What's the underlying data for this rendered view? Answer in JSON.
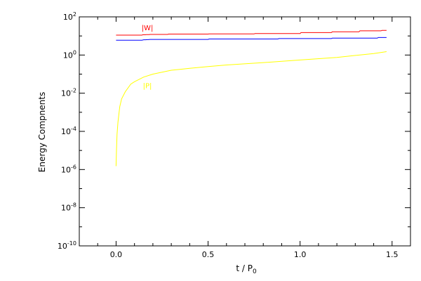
{
  "chart_data": {
    "type": "line",
    "title": "",
    "xlabel": "t / P",
    "xlabel_sub": "0",
    "ylabel": "Energy Compnents",
    "x_scale": "linear",
    "y_scale": "log",
    "xlim": [
      -0.2,
      1.6
    ],
    "ylim": [
      1e-10,
      100
    ],
    "x_ticks": [
      {
        "value": 0.0,
        "label": "0.0"
      },
      {
        "value": 0.5,
        "label": "0.5"
      },
      {
        "value": 1.0,
        "label": "1.0"
      },
      {
        "value": 1.5,
        "label": "1.5"
      }
    ],
    "y_ticks": [
      {
        "value": 100,
        "base": "10",
        "exp": "2"
      },
      {
        "value": 1,
        "base": "10",
        "exp": "0"
      },
      {
        "value": 0.01,
        "base": "10",
        "exp": "-2"
      },
      {
        "value": 0.0001,
        "base": "10",
        "exp": "-4"
      },
      {
        "value": 1e-06,
        "base": "10",
        "exp": "-6"
      },
      {
        "value": 1e-08,
        "base": "10",
        "exp": "-8"
      },
      {
        "value": 1e-10,
        "base": "10",
        "exp": "-10"
      }
    ],
    "grid": false,
    "legend": "none",
    "series": [
      {
        "color": "#ff0000",
        "x": [
          0.0,
          0.14,
          0.145,
          0.16,
          0.165,
          0.18,
          0.185,
          0.28,
          0.285,
          0.5,
          0.505,
          0.75,
          0.755,
          1.0,
          1.005,
          1.17,
          1.175,
          1.32,
          1.325,
          1.44,
          1.445,
          1.47
        ],
        "y": [
          11,
          11,
          11.5,
          11.5,
          11.8,
          11.8,
          12,
          12,
          12.5,
          12.5,
          12.8,
          12.8,
          13.3,
          13.3,
          15,
          15,
          16.5,
          16.5,
          18.5,
          18.5,
          19.5,
          19.5
        ]
      },
      {
        "color": "#0000ff",
        "x": [
          0.0,
          0.14,
          0.15,
          0.16,
          0.17,
          0.175,
          0.18,
          0.185,
          0.5,
          0.505,
          0.88,
          0.885,
          1.17,
          1.175,
          1.42,
          1.425,
          1.47
        ],
        "y": [
          6,
          6,
          6.3,
          6.3,
          6.4,
          6.4,
          6.5,
          6.6,
          6.6,
          6.9,
          6.9,
          7.3,
          7.3,
          7.7,
          7.7,
          8.3,
          8.3
        ]
      },
      {
        "color": "#ffff00",
        "x": [
          0.0,
          0.002,
          0.005,
          0.01,
          0.02,
          0.03,
          0.05,
          0.08,
          0.1,
          0.15,
          0.2,
          0.3,
          0.4,
          0.5,
          0.6,
          0.8,
          1.0,
          1.2,
          1.4,
          1.47
        ],
        "y": [
          1.5e-06,
          1e-05,
          7e-05,
          0.0003,
          0.002,
          0.005,
          0.012,
          0.03,
          0.04,
          0.07,
          0.1,
          0.16,
          0.2,
          0.25,
          0.3,
          0.4,
          0.55,
          0.75,
          1.2,
          1.5
        ]
      }
    ],
    "annotations": [
      {
        "text": "|W|",
        "x": 0.17,
        "y": 20,
        "color": "#ff0000"
      },
      {
        "text": "|P|",
        "x": 0.17,
        "y": 0.018,
        "color": "#ffff00"
      }
    ]
  }
}
